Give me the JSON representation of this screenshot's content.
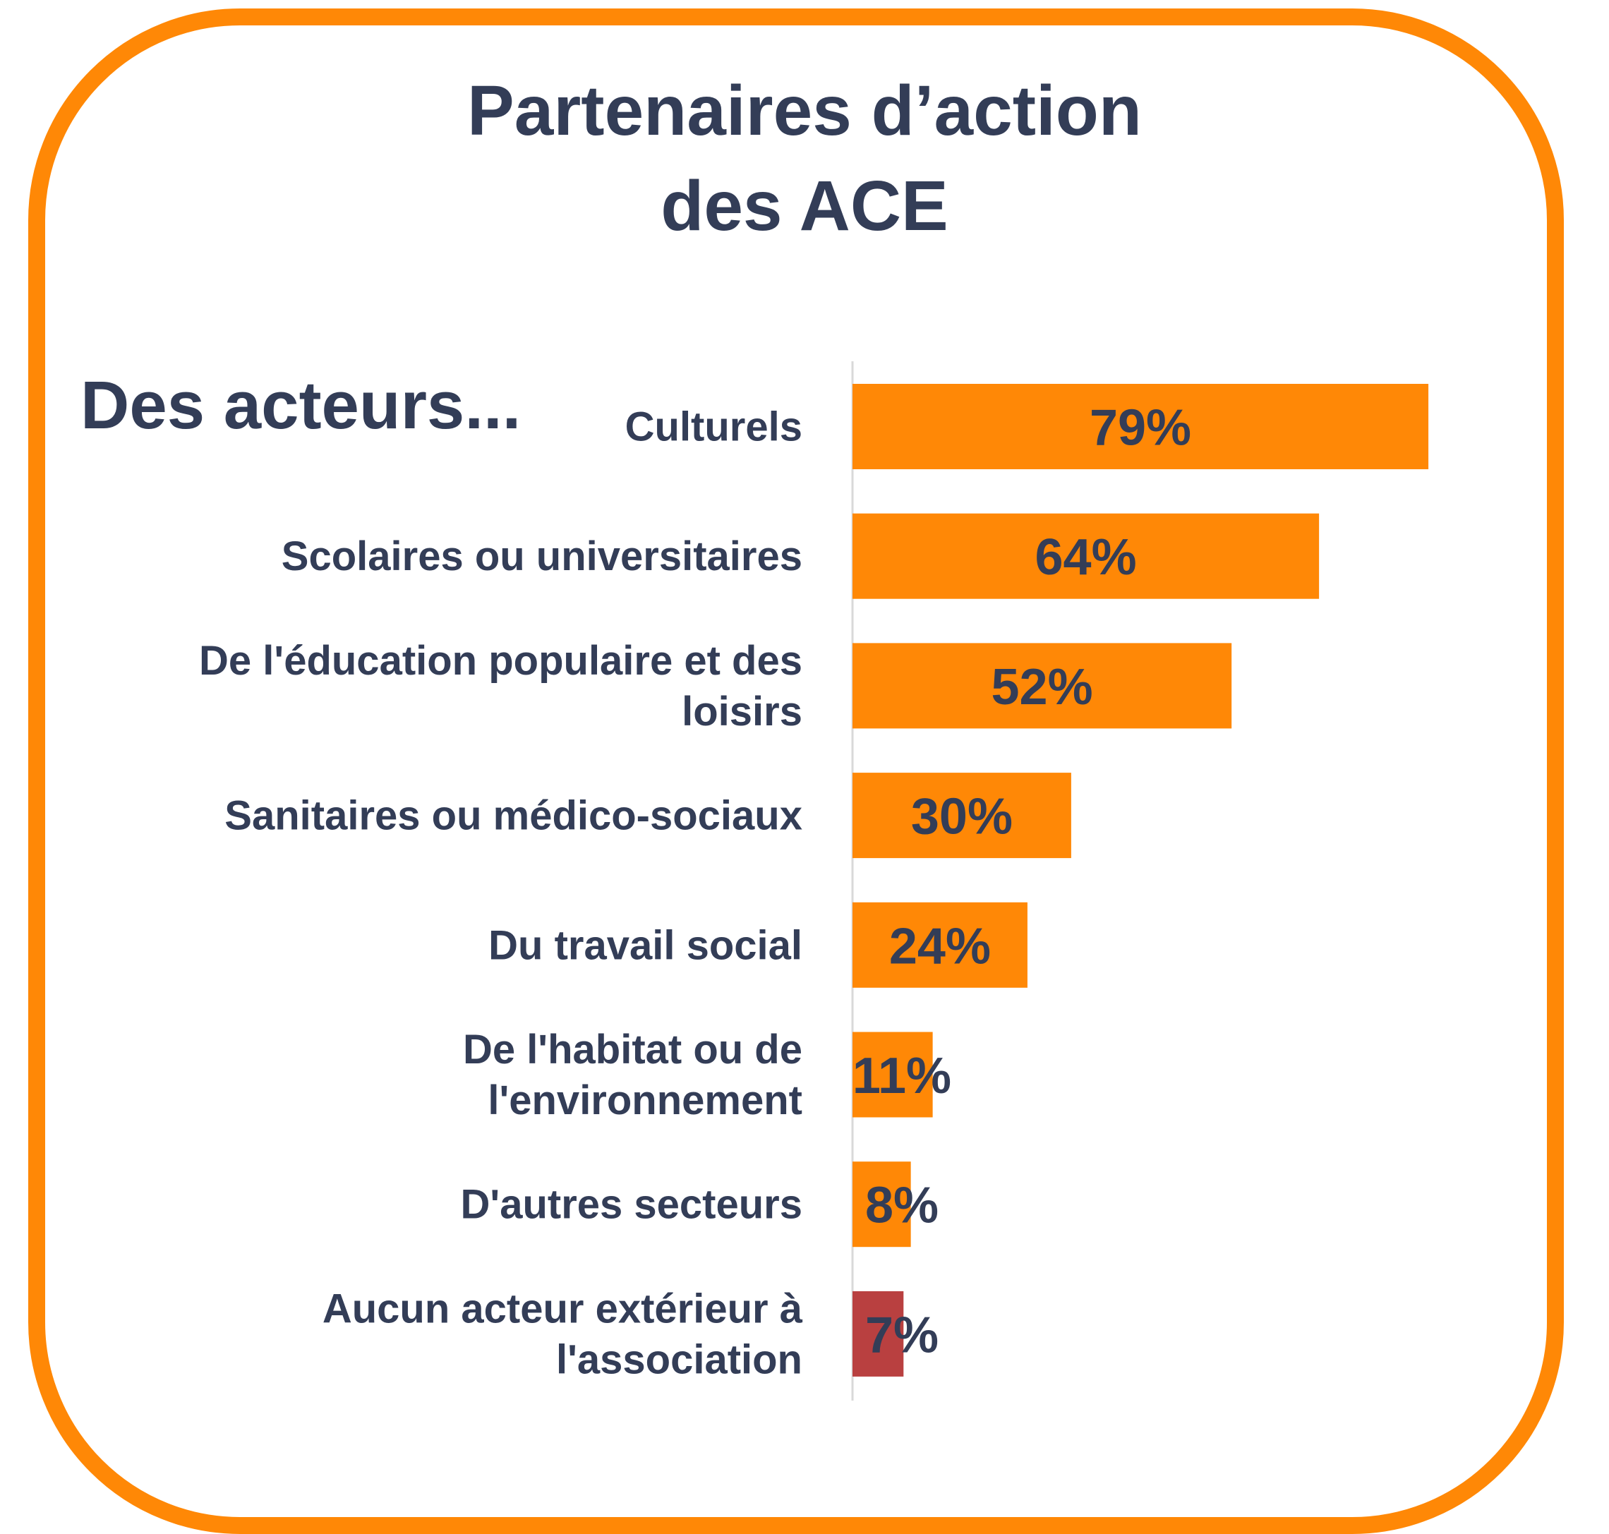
{
  "chart_data": {
    "type": "bar",
    "orientation": "horizontal",
    "title": [
      "Partenaires d’action",
      "des ACE"
    ],
    "subtitle": "Des acteurs...",
    "categories": [
      [
        "Culturels"
      ],
      [
        "Scolaires ou universitaires"
      ],
      [
        "De l'éducation populaire et des",
        "loisirs"
      ],
      [
        "Sanitaires ou médico-sociaux"
      ],
      [
        "Du travail social"
      ],
      [
        "De l'habitat ou de",
        "l'environnement"
      ],
      [
        "D'autres secteurs"
      ],
      [
        "Aucun acteur extérieur à",
        "l'association"
      ]
    ],
    "values": [
      79,
      64,
      52,
      30,
      24,
      11,
      8,
      7
    ],
    "data_labels": [
      "79%",
      "64%",
      "52%",
      "30%",
      "24%",
      "11%",
      "8%",
      "7%"
    ],
    "unit": "%",
    "grid": false,
    "colors": [
      "#FF8806",
      "#FF8806",
      "#FF8806",
      "#FF8806",
      "#FF8806",
      "#FF8806",
      "#FF8806",
      "#B94040"
    ],
    "text_color": "#333D57",
    "border_color": "#FF8806"
  }
}
